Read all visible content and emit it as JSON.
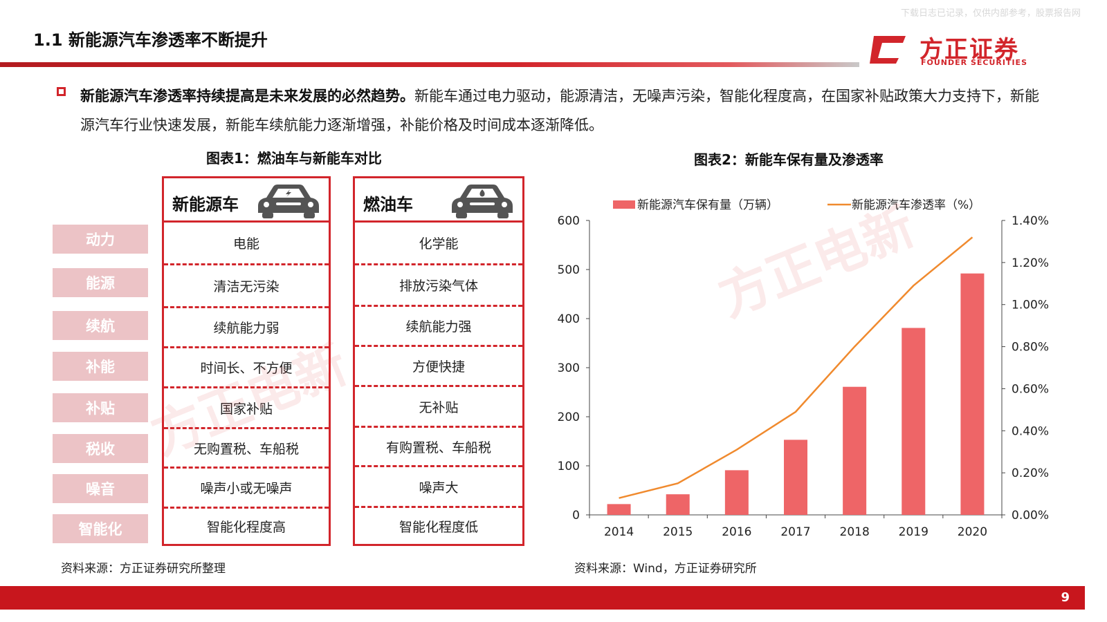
{
  "header": {
    "title": "1.1 新能源汽车渗透率不断提升",
    "top_note": "下载日志已记录，仅供内部参考，股票报告网",
    "logo_cn": "方正证券",
    "logo_en": "FOUNDER SECURITIES"
  },
  "intro": {
    "bold": "新能源汽车渗透率持续提高是未来发展的必然趋势。",
    "rest": "新能车通过电力驱动，能源清洁，无噪声污染，智能化程度高，在国家补贴政策大力支持下，新能源汽车行业快速发展，新能车续航能力逐渐增强，补能价格及时间成本逐渐降低。"
  },
  "figure1": {
    "title": "图表1：燃油车与新能车对比",
    "row_labels": [
      "动力",
      "能源",
      "续航",
      "补能",
      "补贴",
      "税收",
      "噪音",
      "智能化"
    ],
    "ev": {
      "name": "新能源车",
      "cells": [
        "电能",
        "清洁无污染",
        "续航能力弱",
        "时间长、不方便",
        "国家补贴",
        "无购置税、车船税",
        "噪声小或无噪声",
        "智能化程度高"
      ]
    },
    "ice": {
      "name": "燃油车",
      "cells": [
        "化学能",
        "排放污染气体",
        "续航能力强",
        "方便快捷",
        "无补贴",
        "有购置税、车船税",
        "噪声大",
        "智能化程度低"
      ]
    },
    "source": "资料来源：方正证券研究所整理"
  },
  "figure2": {
    "title": "图表2：新能车保有量及渗透率",
    "source": "资料来源：Wind，方正证券研究所"
  },
  "chart_data": {
    "type": "bar",
    "title": "图表2：新能车保有量及渗透率",
    "categories": [
      "2014",
      "2015",
      "2016",
      "2017",
      "2018",
      "2019",
      "2020"
    ],
    "series": [
      {
        "name": "新能源汽车保有量（万辆）",
        "type": "bar",
        "axis": "left",
        "color": "#ee6567",
        "values": [
          22,
          42,
          91,
          153,
          261,
          381,
          492
        ]
      },
      {
        "name": "新能源汽车渗透率（%）",
        "type": "line",
        "axis": "right",
        "color": "#f08a2e",
        "values": [
          0.08,
          0.15,
          0.31,
          0.49,
          0.8,
          1.09,
          1.32
        ]
      }
    ],
    "ylim": [
      0,
      600
    ],
    "yticks": [
      "0",
      "100",
      "200",
      "300",
      "400",
      "500",
      "600"
    ],
    "y2lim": [
      0,
      1.4
    ],
    "y2ticks": [
      "0.00%",
      "0.20%",
      "0.40%",
      "0.60%",
      "0.80%",
      "1.00%",
      "1.20%",
      "1.40%"
    ],
    "legend": "top",
    "grid": false
  },
  "watermark": "方正电新",
  "page_number": "9",
  "colors": {
    "brand_red": "#d2252b",
    "label_pink": "#ecc3c6",
    "bar": "#ee6567",
    "line": "#f08a2e"
  }
}
